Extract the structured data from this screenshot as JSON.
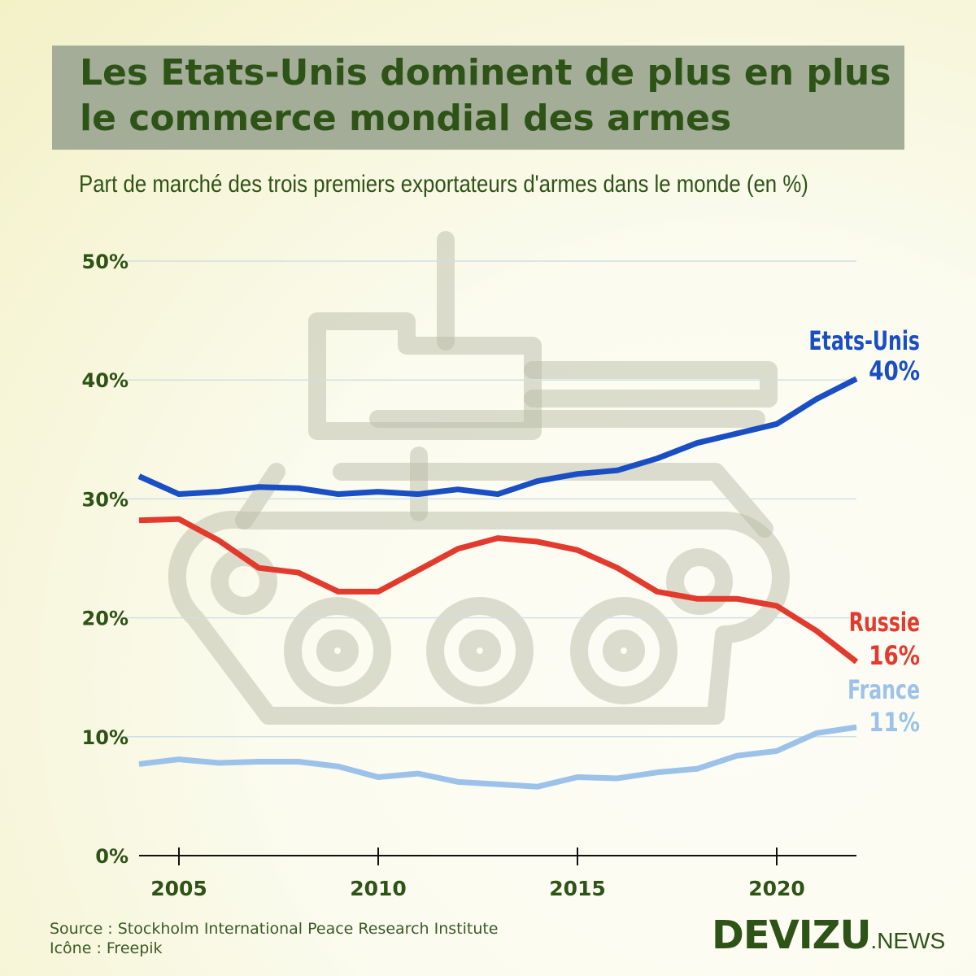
{
  "header": {
    "title_line1": "Les Etats-Unis dominent de plus en plus",
    "title_line2": "le commerce mondial des armes",
    "subtitle": "Part de marché des trois premiers exportateurs d'armes dans le monde (en %)"
  },
  "chart_data": {
    "type": "line",
    "title": "Les Etats-Unis dominent de plus en plus le commerce mondial des armes",
    "subtitle": "Part de marché des trois premiers exportateurs d'armes dans le monde (en %)",
    "xlabel": "",
    "ylabel": "",
    "x": [
      2004,
      2005,
      2006,
      2007,
      2008,
      2009,
      2010,
      2011,
      2012,
      2013,
      2014,
      2015,
      2016,
      2017,
      2018,
      2019,
      2020,
      2021,
      2022
    ],
    "xlim": [
      2004,
      2022
    ],
    "ylim": [
      0,
      50
    ],
    "x_ticks": [
      2005,
      2010,
      2015,
      2020
    ],
    "x_tick_labels": [
      "2005",
      "2010",
      "2015",
      "2020"
    ],
    "y_ticks": [
      0,
      10,
      20,
      30,
      40,
      50
    ],
    "y_tick_labels": [
      "0%",
      "10%",
      "20%",
      "30%",
      "40%",
      "50%"
    ],
    "grid": "horizontal",
    "series": [
      {
        "name": "Etats-Unis",
        "end_label": "40%",
        "color": "#1a4fc4",
        "values": [
          31.9,
          30.4,
          30.6,
          31.0,
          30.9,
          30.4,
          30.6,
          30.4,
          30.8,
          30.4,
          31.5,
          32.1,
          32.4,
          33.4,
          34.7,
          35.5,
          36.3,
          38.4,
          40.1
        ]
      },
      {
        "name": "Russie",
        "end_label": "16%",
        "color": "#e23b2e",
        "values": [
          28.2,
          28.3,
          26.5,
          24.2,
          23.8,
          22.2,
          22.2,
          24.0,
          25.8,
          26.7,
          26.4,
          25.7,
          24.2,
          22.2,
          21.6,
          21.6,
          21.0,
          18.9,
          16.3
        ]
      },
      {
        "name": "France",
        "end_label": "11%",
        "color": "#9cc2ea",
        "values": [
          7.7,
          8.1,
          7.8,
          7.9,
          7.9,
          7.5,
          6.6,
          6.9,
          6.2,
          6.0,
          5.8,
          6.6,
          6.5,
          7.0,
          7.3,
          8.4,
          8.8,
          10.3,
          10.8
        ]
      }
    ]
  },
  "footer": {
    "source": "Source : Stockholm International Peace Research Institute",
    "icon_credit": "Icône : Freepik",
    "logo_main": "DEVIZU",
    "logo_suffix": ".NEWS"
  },
  "icons": {
    "background": "tank-icon"
  },
  "colors": {
    "title_text": "#2e5316",
    "title_box": "#a3ad98",
    "grid": "#cfe0e6"
  }
}
